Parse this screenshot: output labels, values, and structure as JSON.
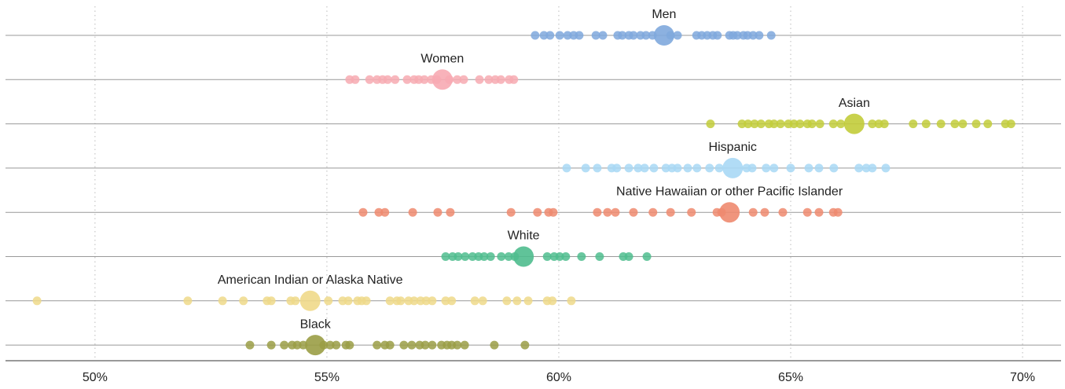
{
  "chart_data": {
    "type": "strip",
    "xlim": [
      48.07,
      70.83
    ],
    "xticks": [
      {
        "value": 50,
        "label": "50%"
      },
      {
        "value": 55,
        "label": "55%"
      },
      {
        "value": 60,
        "label": "60%"
      },
      {
        "value": 65,
        "label": "65%"
      },
      {
        "value": 70,
        "label": "70%"
      }
    ],
    "grid": true,
    "series": [
      {
        "name": "Men",
        "color": "#7fa8dd",
        "average": 62.27,
        "values": [
          59.49,
          59.68,
          59.81,
          60.02,
          60.19,
          60.32,
          60.44,
          60.8,
          60.95,
          61.27,
          61.37,
          61.51,
          61.61,
          61.76,
          61.88,
          62.02,
          62.41,
          62.56,
          62.97,
          63.08,
          63.2,
          63.32,
          63.42,
          63.68,
          63.76,
          63.85,
          63.98,
          64.07,
          64.19,
          64.32,
          64.58
        ]
      },
      {
        "name": "Women",
        "color": "#f7aab2",
        "average": 57.49,
        "values": [
          55.49,
          55.61,
          55.92,
          56.08,
          56.2,
          56.31,
          56.47,
          56.73,
          56.88,
          56.98,
          57.1,
          57.25,
          57.37,
          57.64,
          57.81,
          57.95,
          58.29,
          58.49,
          58.63,
          58.75,
          58.93,
          59.03
        ]
      },
      {
        "name": "Asian",
        "color": "#c2cc3a",
        "average": 66.37,
        "values": [
          63.27,
          63.95,
          64.08,
          64.22,
          64.36,
          64.53,
          64.64,
          64.78,
          64.95,
          65.07,
          65.2,
          65.36,
          65.46,
          65.63,
          65.92,
          66.08,
          66.76,
          66.9,
          67.02,
          67.64,
          67.92,
          68.24,
          68.54,
          68.71,
          69.0,
          69.25,
          69.63,
          69.75
        ]
      },
      {
        "name": "Hispanic",
        "color": "#a8d8f5",
        "average": 63.75,
        "values": [
          60.17,
          60.58,
          60.83,
          61.14,
          61.25,
          61.51,
          61.71,
          61.85,
          62.05,
          62.31,
          62.44,
          62.56,
          62.78,
          62.98,
          63.25,
          63.46,
          64.05,
          64.17,
          64.47,
          64.64,
          65.0,
          65.39,
          65.61,
          65.93,
          66.47,
          66.63,
          66.76,
          67.05
        ]
      },
      {
        "name": "Native Hawaiian or other Pacific Islander",
        "color": "#ee8a6f",
        "average": 63.68,
        "values": [
          55.78,
          56.12,
          56.25,
          56.85,
          57.39,
          57.66,
          58.97,
          59.54,
          59.78,
          59.88,
          60.83,
          61.05,
          61.22,
          61.61,
          62.03,
          62.41,
          62.86,
          63.41,
          63.51,
          64.19,
          64.44,
          64.83,
          65.36,
          65.61,
          65.92,
          66.02
        ]
      },
      {
        "name": "White",
        "color": "#4fbd8e",
        "average": 59.24,
        "values": [
          57.56,
          57.71,
          57.83,
          57.98,
          58.14,
          58.27,
          58.39,
          58.53,
          58.76,
          58.92,
          59.05,
          59.75,
          59.9,
          60.02,
          60.15,
          60.49,
          60.88,
          61.39,
          61.51,
          61.9
        ]
      },
      {
        "name": "American Indian or Alaska Native",
        "color": "#efd98a",
        "average": 54.64,
        "values": [
          48.75,
          52.0,
          52.75,
          53.2,
          53.71,
          53.8,
          54.22,
          54.32,
          55.03,
          55.34,
          55.46,
          55.66,
          55.75,
          55.85,
          56.36,
          56.51,
          56.59,
          56.76,
          56.88,
          57.02,
          57.14,
          57.27,
          57.56,
          57.69,
          58.19,
          58.36,
          58.88,
          59.1,
          59.34,
          59.75,
          59.86,
          60.27
        ]
      },
      {
        "name": "Black",
        "color": "#9a9d45",
        "average": 54.75,
        "values": [
          53.34,
          53.8,
          54.08,
          54.25,
          54.36,
          54.49,
          54.93,
          55.07,
          55.2,
          55.41,
          55.49,
          56.08,
          56.25,
          56.36,
          56.66,
          56.83,
          57.0,
          57.12,
          57.27,
          57.47,
          57.59,
          57.69,
          57.81,
          57.97,
          58.61,
          59.27
        ]
      }
    ]
  }
}
